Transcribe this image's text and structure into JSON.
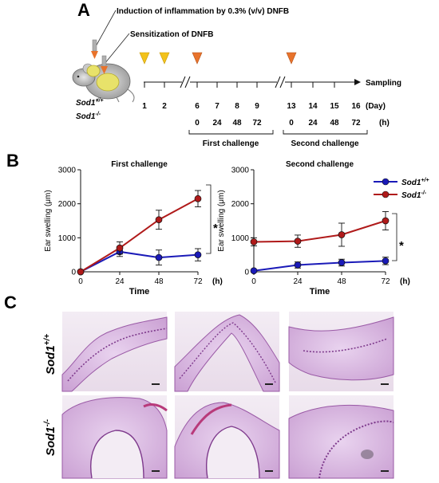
{
  "panel_a": {
    "letter": "A",
    "induction_label": "Induction of inflammation by 0.3% (v/v) DNFB",
    "sensitization_label": "Sensitization of DNFB",
    "sampling_label": "Sampling",
    "genotype_wt": "Sod1",
    "genotype_wt_sup": "+/+",
    "genotype_ko": "Sod1",
    "genotype_ko_sup": "-/-",
    "days": [
      "1",
      "2",
      "6",
      "7",
      "8",
      "9",
      "13",
      "14",
      "15",
      "16"
    ],
    "day_unit": "(Day)",
    "hours_first": [
      "0",
      "24",
      "48",
      "72"
    ],
    "hours_second": [
      "0",
      "24",
      "48",
      "72"
    ],
    "hour_unit": "(h)",
    "first_challenge": "First challenge",
    "second_challenge": "Second challenge",
    "colors": {
      "sensitization": "#f2c21b",
      "induction": "#e8732c"
    }
  },
  "panel_b": {
    "letter": "B",
    "legend": [
      {
        "label": "Sod1",
        "sup": "+/+",
        "color": "#1a1ab8"
      },
      {
        "label": "Sod1",
        "sup": "-/-",
        "color": "#b01a1a"
      }
    ],
    "significance": "*"
  },
  "chart_data": [
    {
      "type": "line",
      "title": "First challenge",
      "xlabel": "Time",
      "x_unit": "(h)",
      "ylabel": "Ear swelling (μm)",
      "x": [
        0,
        24,
        48,
        72
      ],
      "xticks": [
        "0",
        "24",
        "48",
        "72"
      ],
      "yticks": [
        "0",
        "1000",
        "2000",
        "3000"
      ],
      "ylim": [
        0,
        3000
      ],
      "series": [
        {
          "name": "Sod1 +/+",
          "color": "#1a1ab8",
          "values": [
            0,
            590,
            420,
            500
          ],
          "errors": [
            0,
            140,
            220,
            180
          ]
        },
        {
          "name": "Sod1 -/-",
          "color": "#b01a1a",
          "values": [
            0,
            700,
            1530,
            2150
          ],
          "errors": [
            0,
            180,
            280,
            240
          ]
        }
      ]
    },
    {
      "type": "line",
      "title": "Second challenge",
      "xlabel": "Time",
      "x_unit": "(h)",
      "ylabel": "Ear swelling (μm)",
      "x": [
        0,
        24,
        48,
        72
      ],
      "xticks": [
        "0",
        "24",
        "48",
        "72"
      ],
      "yticks": [
        "0",
        "1000",
        "2000",
        "3000"
      ],
      "ylim": [
        0,
        3000
      ],
      "series": [
        {
          "name": "Sod1 +/+",
          "color": "#1a1ab8",
          "values": [
            30,
            200,
            270,
            320
          ],
          "errors": [
            0,
            90,
            100,
            110
          ]
        },
        {
          "name": "Sod1 -/-",
          "color": "#b01a1a",
          "values": [
            880,
            900,
            1090,
            1500
          ],
          "errors": [
            120,
            180,
            340,
            270
          ]
        }
      ]
    }
  ],
  "panel_c": {
    "letter": "C",
    "row_wt": "Sod1",
    "row_wt_sup": "+/+",
    "row_ko": "Sod1",
    "row_ko_sup": "-/-"
  }
}
